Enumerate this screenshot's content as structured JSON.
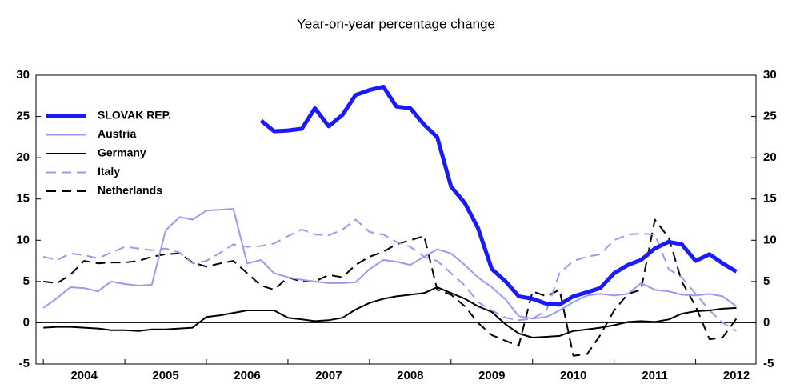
{
  "chart_data": {
    "type": "line",
    "title": "Year-on-year percentage change",
    "x": [
      2004,
      2004.17,
      2004.33,
      2004.5,
      2004.67,
      2004.83,
      2005,
      2005.17,
      2005.33,
      2005.5,
      2005.67,
      2005.83,
      2006,
      2006.17,
      2006.33,
      2006.5,
      2006.67,
      2006.83,
      2007,
      2007.17,
      2007.33,
      2007.5,
      2007.67,
      2007.83,
      2008,
      2008.17,
      2008.33,
      2008.5,
      2008.67,
      2008.83,
      2009,
      2009.17,
      2009.33,
      2009.5,
      2009.67,
      2009.83,
      2010,
      2010.17,
      2010.33,
      2010.5,
      2010.67,
      2010.83,
      2011,
      2011.17,
      2011.33,
      2011.5,
      2011.67,
      2011.83,
      2012,
      2012.17,
      2012.33,
      2012.5
    ],
    "series": [
      {
        "name": "SLOVAK REP.",
        "color": "#1a1aff",
        "width": 5,
        "dashed": false,
        "values": [
          null,
          null,
          null,
          null,
          null,
          null,
          null,
          null,
          null,
          null,
          null,
          null,
          null,
          null,
          null,
          null,
          24.5,
          23.2,
          23.3,
          23.5,
          26.0,
          23.8,
          25.2,
          27.6,
          28.2,
          28.6,
          26.2,
          26.0,
          24.0,
          22.5,
          16.5,
          14.5,
          11.5,
          6.5,
          5.0,
          3.2,
          2.9,
          2.3,
          2.2,
          3.2,
          3.7,
          4.2,
          6.0,
          7.0,
          7.6,
          9.0,
          9.8,
          9.5,
          7.5,
          8.3,
          7.2,
          6.2
        ]
      },
      {
        "name": "Austria",
        "color": "#9a9af0",
        "width": 2,
        "dashed": false,
        "values": [
          1.8,
          3.0,
          4.3,
          4.2,
          3.8,
          5.0,
          4.7,
          4.5,
          4.6,
          11.2,
          12.8,
          12.5,
          13.6,
          13.7,
          13.8,
          7.2,
          7.6,
          6.0,
          5.5,
          5.2,
          5.0,
          4.8,
          4.8,
          4.9,
          6.5,
          7.6,
          7.4,
          7.0,
          8.0,
          8.9,
          8.4,
          7.0,
          5.5,
          4.3,
          2.8,
          0.8,
          0.5,
          0.7,
          1.5,
          2.5,
          3.3,
          3.5,
          3.3,
          3.5,
          4.8,
          4.0,
          3.8,
          3.4,
          3.3,
          3.5,
          3.2,
          2.0
        ]
      },
      {
        "name": "Germany",
        "color": "#000000",
        "width": 2,
        "dashed": false,
        "values": [
          -0.6,
          -0.5,
          -0.5,
          -0.6,
          -0.7,
          -0.9,
          -0.9,
          -1.0,
          -0.8,
          -0.8,
          -0.7,
          -0.6,
          0.7,
          0.9,
          1.2,
          1.5,
          1.5,
          1.5,
          0.6,
          0.4,
          0.2,
          0.3,
          0.6,
          1.6,
          2.4,
          2.9,
          3.2,
          3.4,
          3.6,
          4.3,
          3.6,
          2.9,
          2.0,
          1.3,
          -0.2,
          -1.3,
          -1.8,
          -1.7,
          -1.6,
          -1.0,
          -0.8,
          -0.6,
          -0.3,
          0.1,
          0.2,
          0.1,
          0.4,
          1.1,
          1.4,
          1.5,
          1.7,
          1.8
        ]
      },
      {
        "name": "Italy",
        "color": "#9a9af0",
        "width": 2,
        "dashed": true,
        "values": [
          8.0,
          7.6,
          8.4,
          8.2,
          7.8,
          8.5,
          9.2,
          9.0,
          8.8,
          9.0,
          8.5,
          7.2,
          7.5,
          8.5,
          9.5,
          9.2,
          9.3,
          9.6,
          10.5,
          11.3,
          10.7,
          10.6,
          11.3,
          12.5,
          11.0,
          10.7,
          9.8,
          9.2,
          8.0,
          7.5,
          6.0,
          4.5,
          2.5,
          1.5,
          0.6,
          0.3,
          0.5,
          1.5,
          6.0,
          7.5,
          8.0,
          8.3,
          10.0,
          10.7,
          10.8,
          10.7,
          6.5,
          5.5,
          3.5,
          1.5,
          0.0,
          -1.0
        ]
      },
      {
        "name": "Netherlands",
        "color": "#000000",
        "width": 2,
        "dashed": true,
        "values": [
          5.0,
          4.8,
          5.8,
          7.5,
          7.2,
          7.3,
          7.3,
          7.5,
          8.0,
          8.3,
          8.4,
          7.3,
          6.8,
          7.2,
          7.5,
          6.0,
          4.5,
          4.0,
          5.5,
          5.0,
          5.0,
          5.8,
          5.5,
          7.0,
          8.0,
          8.6,
          9.5,
          10.0,
          10.5,
          4.0,
          3.4,
          2.0,
          0.0,
          -1.5,
          -2.2,
          -2.8,
          3.8,
          3.2,
          4.0,
          -4.0,
          -3.8,
          -1.5,
          1.5,
          3.5,
          4.0,
          12.5,
          10.3,
          5.0,
          2.0,
          -2.0,
          -1.8,
          0.5
        ]
      }
    ],
    "xlim": [
      2003.91,
      2012.74
    ],
    "xticks": [
      {
        "value": 2004.5,
        "label": "2004"
      },
      {
        "value": 2005.5,
        "label": "2005"
      },
      {
        "value": 2006.5,
        "label": "2006"
      },
      {
        "value": 2007.5,
        "label": "2007"
      },
      {
        "value": 2008.5,
        "label": "2008"
      },
      {
        "value": 2009.5,
        "label": "2009"
      },
      {
        "value": 2010.5,
        "label": "2010"
      },
      {
        "value": 2011.5,
        "label": "2011"
      },
      {
        "value": 2012.5,
        "label": "2012"
      }
    ],
    "ylim": [
      -5,
      30
    ],
    "yticks": [
      -5,
      0,
      5,
      10,
      15,
      20,
      25,
      30
    ],
    "y2lim": [
      -5,
      30
    ],
    "y2ticks": [
      -5,
      0,
      5,
      10,
      15,
      20,
      25,
      30
    ],
    "legend": "upper-left"
  }
}
